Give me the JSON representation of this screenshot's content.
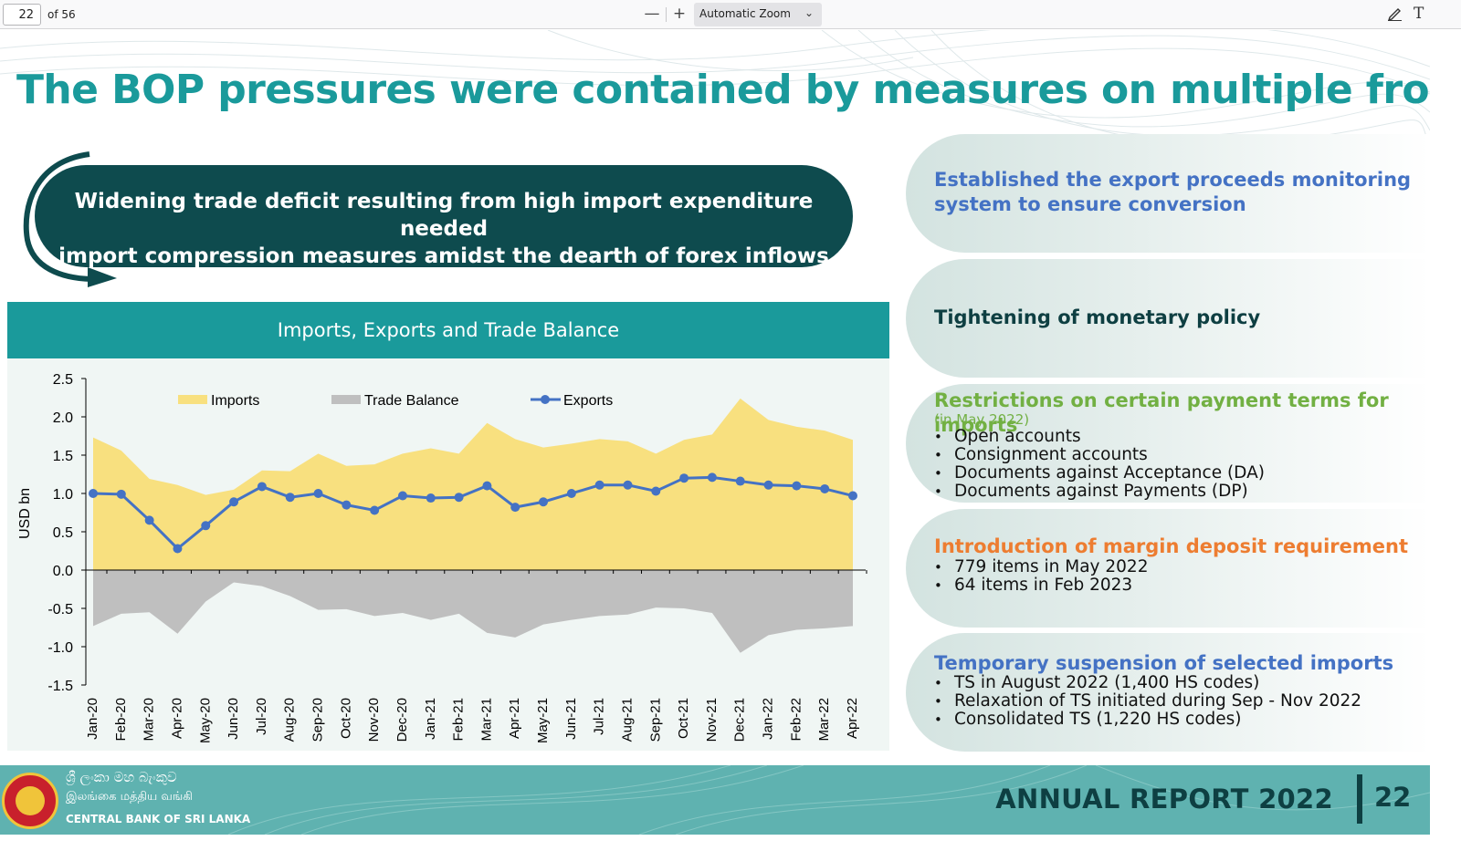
{
  "viewer": {
    "page_number": "22",
    "page_count": "of 56",
    "zoom_out": "—",
    "zoom_in": "+",
    "zoom_level": "Automatic Zoom",
    "icons": [
      "zoom-out-icon",
      "zoom-in-icon",
      "chevron-down-icon",
      "draw-icon",
      "text-icon"
    ]
  },
  "slide": {
    "title": "The BOP pressures were contained by measures on multiple fronts…",
    "banner": {
      "line1": "Widening trade deficit resulting from high import expenditure needed",
      "line2": "import compression measures amidst the dearth of forex inflows"
    },
    "chart_header": "Imports, Exports and Trade Balance",
    "measures": [
      {
        "title_lines": [
          "Established the export proceeds monitoring",
          "system to ensure conversion"
        ],
        "color": "#4472c4"
      },
      {
        "title_lines": [
          "Tightening of monetary policy"
        ],
        "color": "#0e3f42"
      },
      {
        "title_lines": [
          "Restrictions on certain payment terms for imports"
        ],
        "subtitle": "(in May 2022)",
        "color": "#72b043",
        "bullets": [
          "Open accounts",
          "Consignment accounts",
          "Documents against Acceptance (DA)",
          "Documents against Payments (DP)"
        ]
      },
      {
        "title_lines": [
          "Introduction of margin deposit requirement"
        ],
        "color": "#ed7d31",
        "bullets": [
          "779 items in May 2022",
          "64 items in Feb 2023"
        ]
      },
      {
        "title_lines": [
          "Temporary suspension of selected imports"
        ],
        "color": "#4472c4",
        "bullets": [
          "TS in August 2022 (1,400 HS codes)",
          "Relaxation of TS initiated during Sep - Nov 2022",
          "Consolidated TS (1,220 HS codes)"
        ]
      }
    ],
    "footer": {
      "bank_sinhala": "ශ්‍රී ලංකා මහ බැංකුව",
      "bank_tamil": "இலங்கை மத்திய வங்கி",
      "bank_english": "CENTRAL BANK OF SRI LANKA",
      "report": "ANNUAL REPORT 2022",
      "page": "22"
    }
  },
  "chart_data": {
    "type": "area",
    "title": "Imports, Exports and Trade Balance",
    "ylabel": "USD bn",
    "xlabel": "",
    "ylim": [
      -1.5,
      2.5
    ],
    "yticks": [
      2.5,
      2.0,
      1.5,
      1.0,
      0.5,
      0.0,
      -0.5,
      -1.0,
      -1.5
    ],
    "ytick_labels": [
      "2.5",
      "2.0",
      "1.5",
      "1.0",
      "0.5",
      "0.0",
      "-0.5",
      "-1.0",
      "-1.5"
    ],
    "legend_position": "top",
    "categories": [
      "Jan-20",
      "Feb-20",
      "Mar-20",
      "Apr-20",
      "May-20",
      "Jun-20",
      "Jul-20",
      "Aug-20",
      "Sep-20",
      "Oct-20",
      "Nov-20",
      "Dec-20",
      "Jan-21",
      "Feb-21",
      "Mar-21",
      "Apr-21",
      "May-21",
      "Jun-21",
      "Jul-21",
      "Aug-21",
      "Sep-21",
      "Oct-21",
      "Nov-21",
      "Dec-21",
      "Jan-22",
      "Feb-22",
      "Mar-22",
      "Apr-22"
    ],
    "series": [
      {
        "name": "Imports",
        "kind": "area",
        "color": "#f8e07f",
        "values": [
          1.73,
          1.56,
          1.19,
          1.11,
          0.98,
          1.05,
          1.3,
          1.29,
          1.52,
          1.36,
          1.38,
          1.52,
          1.59,
          1.52,
          1.92,
          1.71,
          1.6,
          1.65,
          1.71,
          1.68,
          1.52,
          1.7,
          1.77,
          2.24,
          1.96,
          1.87,
          1.82,
          1.7
        ]
      },
      {
        "name": "Trade Balance",
        "kind": "area",
        "color": "#bfbfbf",
        "values": [
          -0.73,
          -0.57,
          -0.55,
          -0.83,
          -0.41,
          -0.16,
          -0.21,
          -0.34,
          -0.52,
          -0.51,
          -0.6,
          -0.56,
          -0.65,
          -0.57,
          -0.82,
          -0.88,
          -0.71,
          -0.65,
          -0.6,
          -0.58,
          -0.49,
          -0.5,
          -0.56,
          -1.08,
          -0.85,
          -0.78,
          -0.76,
          -0.73
        ]
      },
      {
        "name": "Exports",
        "kind": "line",
        "color": "#4472c4",
        "values": [
          1.0,
          0.99,
          0.65,
          0.28,
          0.58,
          0.89,
          1.09,
          0.95,
          1.0,
          0.85,
          0.78,
          0.97,
          0.94,
          0.95,
          1.1,
          0.82,
          0.89,
          1.0,
          1.11,
          1.11,
          1.03,
          1.2,
          1.21,
          1.16,
          1.11,
          1.1,
          1.06,
          0.97
        ]
      }
    ]
  }
}
